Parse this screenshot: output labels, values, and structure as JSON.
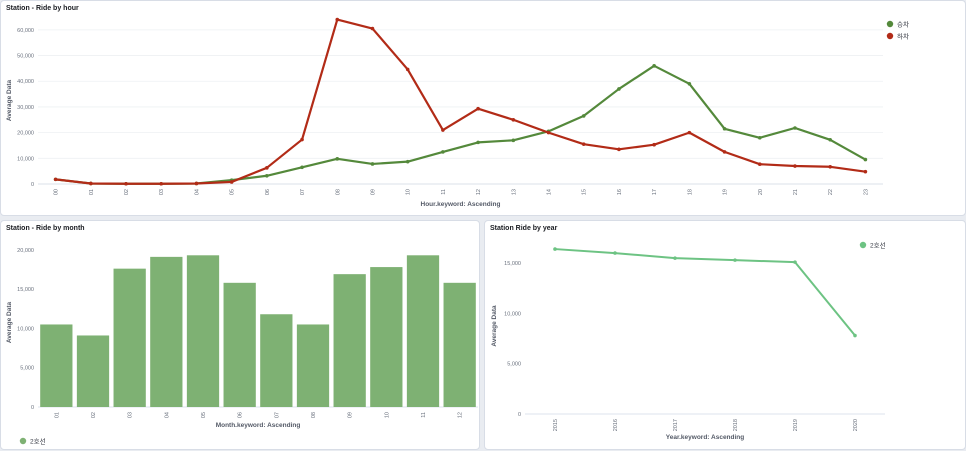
{
  "panels": {
    "hour": {
      "title": "Station - Ride by hour"
    },
    "month": {
      "title": "Station - Ride by month"
    },
    "year": {
      "title": "Station Ride by year"
    }
  },
  "chart_data": [
    {
      "type": "line",
      "title": "Station - Ride by hour",
      "xlabel": "Hour.keyword: Ascending",
      "ylabel": "Average Data",
      "categories": [
        "00",
        "01",
        "02",
        "03",
        "04",
        "05",
        "06",
        "07",
        "08",
        "09",
        "10",
        "11",
        "12",
        "13",
        "14",
        "15",
        "16",
        "17",
        "18",
        "19",
        "20",
        "21",
        "22",
        "23"
      ],
      "ylim": [
        0,
        65000
      ],
      "yticks": [
        0,
        10000,
        20000,
        30000,
        40000,
        50000,
        60000
      ],
      "ytick_labels": [
        "0",
        "10,000",
        "20,000",
        "30,000",
        "40,000",
        "50,000",
        "60,000"
      ],
      "legend_position": "top-right",
      "grid": true,
      "series": [
        {
          "name": "승차",
          "color": "#54893b",
          "values": [
            1800,
            200,
            100,
            100,
            200,
            1500,
            3200,
            6500,
            9800,
            7800,
            8700,
            12500,
            16200,
            17000,
            20500,
            26500,
            37000,
            46000,
            39000,
            21500,
            18000,
            21800,
            17200,
            9500
          ]
        },
        {
          "name": "하차",
          "color": "#b22b17",
          "values": [
            1800,
            200,
            100,
            100,
            200,
            800,
            6300,
            17300,
            64000,
            60500,
            44600,
            21000,
            29300,
            25000,
            20000,
            15500,
            13500,
            15300,
            20000,
            12500,
            7700,
            7000,
            6700,
            4800
          ]
        }
      ]
    },
    {
      "type": "bar",
      "title": "Station - Ride by month",
      "xlabel": "Month.keyword: Ascending",
      "ylabel": "Average Data",
      "categories": [
        "01",
        "02",
        "03",
        "04",
        "05",
        "06",
        "07",
        "08",
        "09",
        "10",
        "11",
        "12"
      ],
      "ylim": [
        0,
        21500
      ],
      "yticks": [
        0,
        5000,
        10000,
        15000,
        20000
      ],
      "ytick_labels": [
        "0",
        "5,000",
        "10,000",
        "15,000",
        "20,000"
      ],
      "legend_position": "bottom-left",
      "grid": false,
      "series": [
        {
          "name": "2호선",
          "color": "#7eb173",
          "values": [
            10500,
            9100,
            17600,
            19100,
            19300,
            15800,
            11800,
            10500,
            16900,
            17800,
            19300,
            15800
          ]
        }
      ]
    },
    {
      "type": "line",
      "title": "Station Ride by year",
      "xlabel": "Year.keyword: Ascending",
      "ylabel": "Average Data",
      "categories": [
        "2015",
        "2016",
        "2017",
        "2018",
        "2019",
        "2020"
      ],
      "ylim": [
        0,
        17500
      ],
      "yticks": [
        0,
        5000,
        10000,
        15000
      ],
      "ytick_labels": [
        "0",
        "5,000",
        "10,000",
        "15,000"
      ],
      "legend_position": "top-right",
      "grid": false,
      "series": [
        {
          "name": "2호선",
          "color": "#6dc383",
          "values": [
            16400,
            16000,
            15500,
            15300,
            15100,
            7800
          ]
        }
      ]
    }
  ]
}
